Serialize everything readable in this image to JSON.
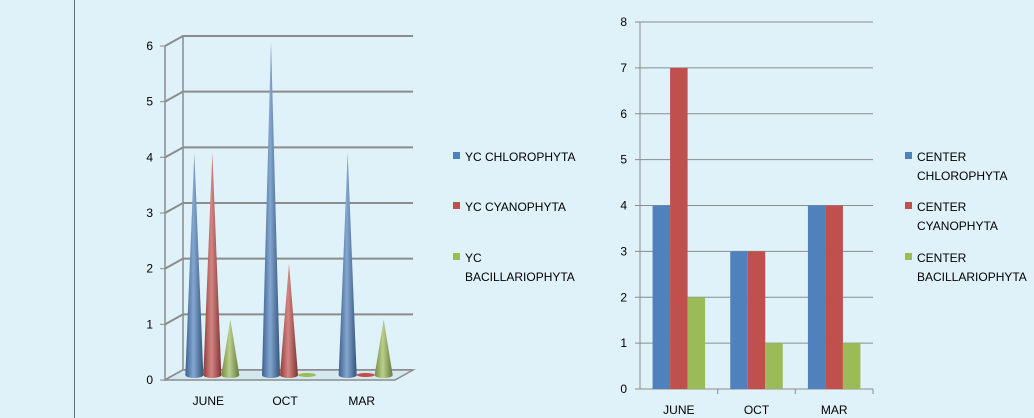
{
  "chart_data": [
    {
      "type": "bar",
      "style": "3d-cone",
      "categories": [
        "JUNE",
        "OCT",
        "MAR"
      ],
      "series": [
        {
          "name": "YC CHLOROPHYTA",
          "values": [
            4,
            6,
            4
          ],
          "color": "#4f81bd"
        },
        {
          "name": "YC CYANOPHYTA",
          "values": [
            4,
            2,
            0
          ],
          "color": "#c0504d"
        },
        {
          "name": "YC BACILLARIOPHYTA",
          "values": [
            1,
            0,
            1
          ],
          "color": "#9bbb59"
        }
      ],
      "y_ticks": [
        "0",
        "1",
        "2",
        "3",
        "4",
        "5",
        "6"
      ],
      "ylim": [
        0,
        6
      ],
      "grid": true,
      "legend_position": "right"
    },
    {
      "type": "bar",
      "categories": [
        "JUNE",
        "OCT",
        "MAR"
      ],
      "series": [
        {
          "name": "CENTER CHLOROPHYTA",
          "values": [
            4,
            3,
            4
          ],
          "color": "#4f81bd"
        },
        {
          "name": "CENTER CYANOPHYTA",
          "values": [
            7,
            3,
            4
          ],
          "color": "#c0504d"
        },
        {
          "name": "CENTER BACILLARIOPHYTA",
          "values": [
            2,
            1,
            1
          ],
          "color": "#9bbb59"
        }
      ],
      "y_ticks": [
        "0",
        "1",
        "2",
        "3",
        "4",
        "5",
        "6",
        "7",
        "8"
      ],
      "ylim": [
        0,
        8
      ],
      "grid": true,
      "legend_position": "right"
    }
  ]
}
